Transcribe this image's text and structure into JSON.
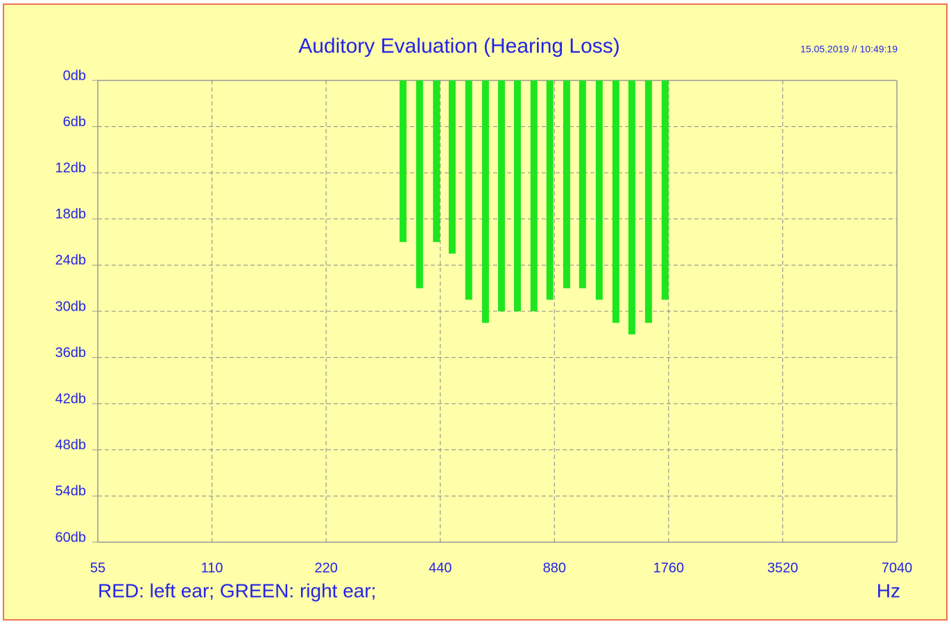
{
  "chart_data": {
    "type": "bar",
    "title": "Auditory Evaluation (Hearing Loss)",
    "subtitle": "15.05.2019 // 10:49:19",
    "legend_text": "RED: left ear; GREEN: right ear;",
    "x_label": "Hz",
    "x_scale": "log",
    "xlim": [
      55,
      7040
    ],
    "xticks": [
      55,
      110,
      220,
      440,
      880,
      1760,
      3520,
      7040
    ],
    "ylim": [
      0,
      60
    ],
    "y_inverted": true,
    "yticks": [
      {
        "value": 0,
        "label": "0db"
      },
      {
        "value": 6,
        "label": "6db"
      },
      {
        "value": 12,
        "label": "12db"
      },
      {
        "value": 18,
        "label": "18db"
      },
      {
        "value": 24,
        "label": "24db"
      },
      {
        "value": 30,
        "label": "30db"
      },
      {
        "value": 36,
        "label": "36db"
      },
      {
        "value": 42,
        "label": "42db"
      },
      {
        "value": 48,
        "label": "48db"
      },
      {
        "value": 54,
        "label": "54db"
      },
      {
        "value": 60,
        "label": "60db"
      }
    ],
    "grid": true,
    "x": [
      351,
      388,
      430,
      473,
      523,
      579,
      638,
      703,
      777,
      856,
      948,
      1044,
      1155,
      1278,
      1408,
      1558,
      1723
    ],
    "series": [
      {
        "color": "#1ee61e",
        "values": [
          21,
          27,
          21,
          22.5,
          28.5,
          31.5,
          30,
          30,
          30,
          28.5,
          27,
          27,
          28.5,
          31.5,
          33,
          31.5,
          28.5
        ]
      }
    ]
  }
}
